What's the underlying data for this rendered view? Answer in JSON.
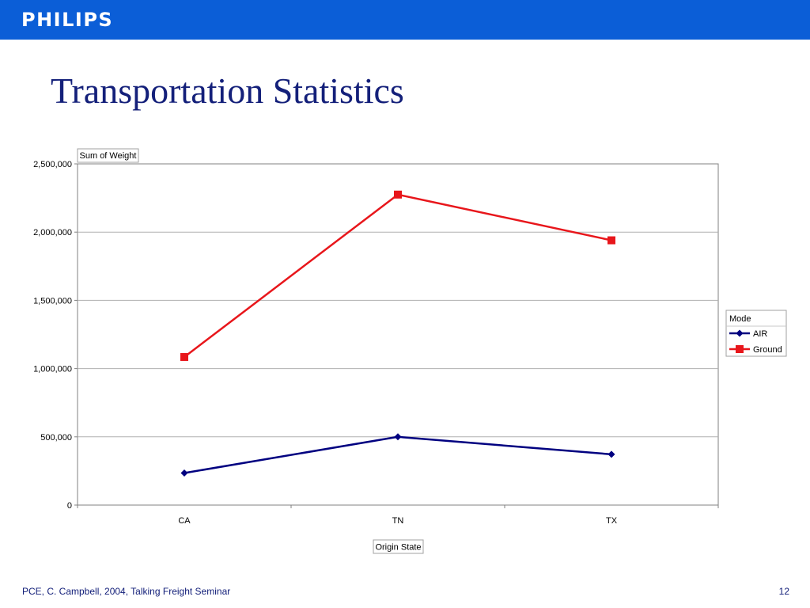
{
  "header": {
    "logo_text": "PHILIPS",
    "brand_color": "#0b5ed7"
  },
  "slide": {
    "title": "Transportation Statistics",
    "title_color": "#14207a"
  },
  "footer": {
    "left_text": "PCE, C. Campbell, 2004, Talking Freight Seminar",
    "page_number": "12"
  },
  "chart_data": {
    "type": "line",
    "title": "",
    "ylabel": "Sum of Weight",
    "xlabel": "Origin State",
    "categories": [
      "CA",
      "TN",
      "TX"
    ],
    "ylim": [
      0,
      2500000
    ],
    "yticks": [
      0,
      500000,
      1000000,
      1500000,
      2000000,
      2500000
    ],
    "ytick_labels": [
      "0",
      "500,000",
      "1,000,000",
      "1,500,000",
      "2,000,000",
      "2,500,000"
    ],
    "grid": true,
    "legend": {
      "title": "Mode",
      "position": "right"
    },
    "series": [
      {
        "name": "AIR",
        "values": [
          235000,
          500000,
          372000
        ],
        "color": "#000080",
        "marker": "diamond"
      },
      {
        "name": "Ground",
        "values": [
          1085000,
          2275000,
          1940000
        ],
        "color": "#e8161b",
        "marker": "square"
      }
    ]
  }
}
